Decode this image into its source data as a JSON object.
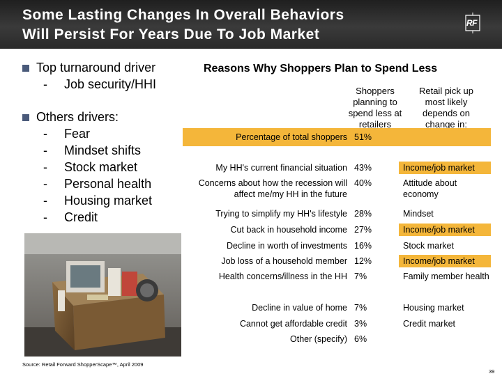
{
  "header": {
    "title_line1": "Some Lasting Changes In Overall Behaviors",
    "title_line2": "Will Persist For Years Due To Job Market",
    "logo_text": "RF"
  },
  "bullets": [
    {
      "text": "Top turnaround driver",
      "subs": [
        "Job security/HHI"
      ]
    },
    {
      "text": "Others drivers:",
      "subs": [
        "Fear",
        "Mindset shifts",
        "Stock market",
        "Personal health",
        "Housing market",
        "Credit"
      ]
    }
  ],
  "dash": "-",
  "photo": {
    "icon": "office-box-photo"
  },
  "chart": {
    "title": "Reasons Why Shoppers Plan to Spend Less",
    "col_headers": {
      "value": "Shoppers planning to spend less at retailers",
      "depends": "Retail pick up most likely depends on change in:"
    },
    "total": {
      "label": "Percentage of total shoppers",
      "value": "51%"
    }
  },
  "chart_data": {
    "type": "table",
    "title": "Reasons Why Shoppers Plan to Spend Less",
    "columns": [
      "",
      "Shoppers planning to spend less at retailers",
      "Retail pick up most likely depends on change in:"
    ],
    "total": {
      "label": "Percentage of total shoppers",
      "value": 51
    },
    "rows": [
      {
        "label": "My HH's current financial situation",
        "value": "43%",
        "depends": "Income/job market",
        "highlight": true
      },
      {
        "label": "Concerns about how the recession will affect me/my HH in the future",
        "value": "40%",
        "depends": "Attitude about economy",
        "highlight": false
      },
      {
        "label": "Trying to simplify my HH's lifestyle",
        "value": "28%",
        "depends": "Mindset",
        "highlight": false
      },
      {
        "label": "Cut back in household income",
        "value": "27%",
        "depends": "Income/job market",
        "highlight": true
      },
      {
        "label": "Decline in worth of investments",
        "value": "16%",
        "depends": "Stock market",
        "highlight": false
      },
      {
        "label": "Job loss of a household member",
        "value": "12%",
        "depends": "Income/job market",
        "highlight": true
      },
      {
        "label": "Health concerns/illness in the HH",
        "value": "7%",
        "depends": "Family member health",
        "highlight": false
      },
      {
        "label": "Decline in value of home",
        "value": "7%",
        "depends": "Housing market",
        "highlight": false
      },
      {
        "label": "Cannot get affordable credit",
        "value": "3%",
        "depends": "Credit market",
        "highlight": false
      },
      {
        "label": "Other (specify)",
        "value": "6%",
        "depends": "",
        "highlight": false
      }
    ],
    "highlight_color": "#f4b63a"
  },
  "footer": {
    "source": "Source: Retail Forward ShopperScape™, April 2009",
    "page": "39"
  }
}
